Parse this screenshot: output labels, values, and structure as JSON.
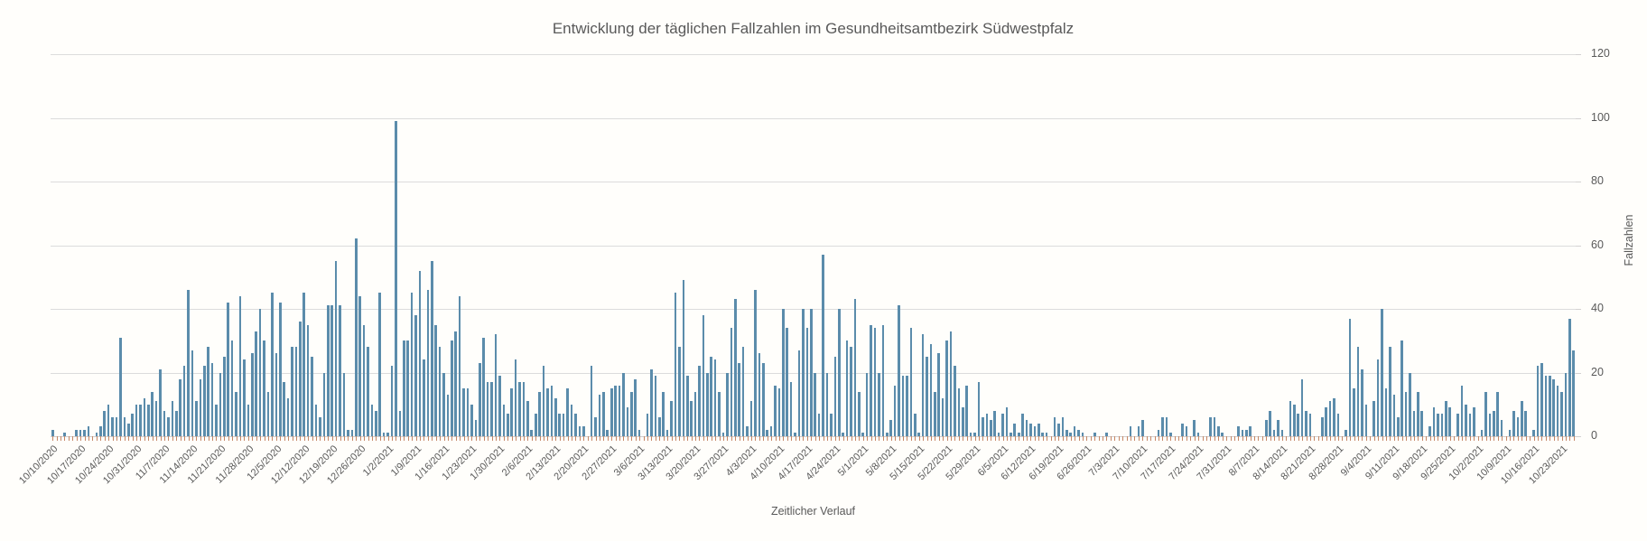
{
  "page": {
    "background": "#ffffff"
  },
  "chart_data": {
    "type": "bar",
    "title": "Entwicklung der täglichen Fallzahlen im Gesundheitsamtbezirk Südwestpfalz",
    "xlabel": "Zeitlicher Verlauf",
    "ylabel": "Fallzahlen",
    "ylim": [
      0,
      120
    ],
    "yticks": [
      0,
      20,
      40,
      60,
      80,
      100,
      120
    ],
    "grid": true,
    "legend": false,
    "y_axis_side": "right",
    "bar_color": "#5b8cab",
    "gridline_color": "#dcdcdc",
    "axis_line_color": "#cfcdcd",
    "x_tick_color": "#c58766",
    "text_color": "#595959",
    "x_start_date": "10/10/2020",
    "x_end_date": "10/26/2021",
    "x_tick_labels": [
      "10/10/2020",
      "10/17/2020",
      "10/24/2020",
      "10/31/2020",
      "11/7/2020",
      "11/14/2020",
      "11/21/2020",
      "11/28/2020",
      "12/5/2020",
      "12/12/2020",
      "12/19/2020",
      "12/26/2020",
      "1/2/2021",
      "1/9/2021",
      "1/16/2021",
      "1/23/2021",
      "1/30/2021",
      "2/6/2021",
      "2/13/2021",
      "2/20/2021",
      "2/27/2021",
      "3/6/2021",
      "3/13/2021",
      "3/20/2021",
      "3/27/2021",
      "4/3/2021",
      "4/10/2021",
      "4/17/2021",
      "4/24/2021",
      "5/1/2021",
      "5/8/2021",
      "5/15/2021",
      "5/22/2021",
      "5/29/2021",
      "6/5/2021",
      "6/12/2021",
      "6/19/2021",
      "6/26/2021",
      "7/3/2021",
      "7/10/2021",
      "7/17/2021",
      "7/24/2021",
      "7/31/2021",
      "8/7/2021",
      "8/14/2021",
      "8/21/2021",
      "8/28/2021",
      "9/4/2021",
      "9/11/2021",
      "9/18/2021",
      "9/25/2021",
      "10/2/2021",
      "10/9/2021",
      "10/16/2021",
      "10/23/2021"
    ],
    "values": [
      2,
      0,
      0,
      1,
      0,
      0,
      2,
      2,
      2,
      3,
      0,
      1,
      3,
      8,
      10,
      6,
      6,
      31,
      6,
      4,
      7,
      10,
      10,
      12,
      10,
      14,
      11,
      21,
      8,
      6,
      11,
      8,
      18,
      22,
      46,
      27,
      11,
      18,
      22,
      28,
      23,
      10,
      20,
      25,
      42,
      30,
      14,
      44,
      24,
      10,
      26,
      33,
      40,
      30,
      14,
      45,
      26,
      42,
      17,
      12,
      28,
      28,
      36,
      45,
      35,
      25,
      10,
      6,
      20,
      41,
      41,
      55,
      41,
      20,
      2,
      2,
      62,
      44,
      35,
      28,
      10,
      8,
      45,
      1,
      1,
      22,
      99,
      8,
      30,
      30,
      45,
      38,
      52,
      24,
      46,
      55,
      35,
      28,
      20,
      13,
      30,
      33,
      44,
      15,
      15,
      10,
      5,
      23,
      31,
      17,
      17,
      32,
      19,
      10,
      7,
      15,
      24,
      17,
      17,
      11,
      2,
      7,
      14,
      22,
      15,
      16,
      12,
      7,
      7,
      15,
      10,
      7,
      3,
      3,
      0,
      22,
      6,
      13,
      14,
      2,
      15,
      16,
      16,
      20,
      9,
      14,
      18,
      2,
      0,
      7,
      21,
      19,
      6,
      14,
      2,
      11,
      45,
      28,
      49,
      19,
      11,
      14,
      22,
      38,
      20,
      25,
      24,
      14,
      1,
      20,
      34,
      43,
      23,
      28,
      3,
      11,
      46,
      26,
      23,
      2,
      3,
      16,
      15,
      40,
      34,
      17,
      1,
      27,
      40,
      34,
      40,
      20,
      7,
      57,
      20,
      7,
      25,
      40,
      1,
      30,
      28,
      43,
      14,
      1,
      20,
      35,
      34,
      20,
      35,
      1,
      5,
      16,
      41,
      19,
      19,
      34,
      7,
      1,
      32,
      25,
      29,
      14,
      26,
      12,
      30,
      33,
      22,
      15,
      9,
      16,
      1,
      1,
      17,
      6,
      7,
      5,
      8,
      1,
      7,
      9,
      1,
      4,
      1,
      7,
      5,
      4,
      3,
      4,
      1,
      1,
      0,
      6,
      4,
      6,
      2,
      1,
      3,
      2,
      1,
      0,
      0,
      1,
      0,
      0,
      1,
      0,
      0,
      0,
      0,
      0,
      3,
      0,
      3,
      5,
      0,
      0,
      0,
      2,
      6,
      6,
      1,
      0,
      0,
      4,
      3,
      0,
      5,
      1,
      0,
      0,
      6,
      6,
      3,
      1,
      0,
      0,
      0,
      3,
      2,
      2,
      3,
      0,
      0,
      0,
      5,
      8,
      2,
      5,
      2,
      0,
      11,
      10,
      7,
      18,
      8,
      7,
      0,
      0,
      6,
      9,
      11,
      12,
      7,
      0,
      2,
      37,
      15,
      28,
      21,
      10,
      0,
      11,
      24,
      40,
      15,
      28,
      13,
      6,
      30,
      14,
      20,
      8,
      14,
      8,
      0,
      3,
      9,
      7,
      7,
      11,
      9,
      0,
      7,
      16,
      10,
      7,
      9,
      0,
      2,
      14,
      7,
      8,
      14,
      5,
      0,
      2,
      8,
      6,
      11,
      8,
      0,
      2,
      22,
      23,
      19,
      19,
      18,
      16,
      14,
      20,
      37,
      27
    ]
  }
}
